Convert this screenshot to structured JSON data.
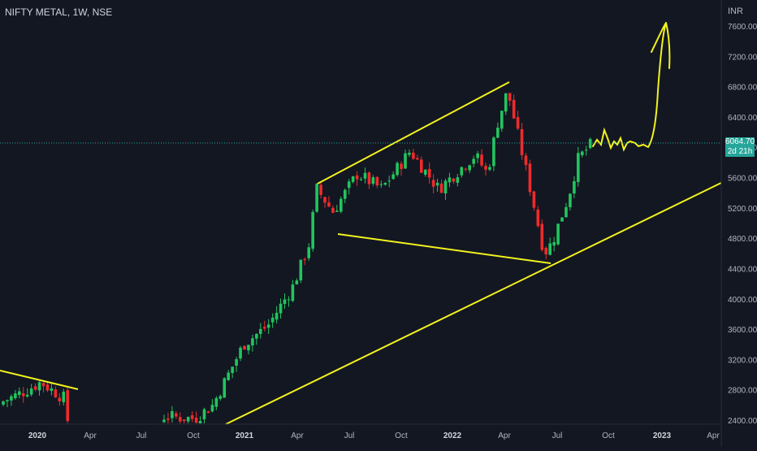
{
  "header": {
    "symbol": "NIFTY METAL",
    "interval": "1W",
    "exchange": "NSE"
  },
  "axis_unit": "INR",
  "last_price": {
    "value": "6064.70",
    "countdown": "2d 21h"
  },
  "colors": {
    "background": "#131722",
    "up": "#22c55e",
    "down": "#ef2b2b",
    "trendline": "#f2f21e",
    "last_price_line": "#26a69a",
    "axis_text": "#b2b5be"
  },
  "chart_data": {
    "type": "candlestick",
    "y_ticks": [
      "7600.00",
      "7200.00",
      "6800.00",
      "6400.00",
      "6000.00",
      "5600.00",
      "5200.00",
      "4800.00",
      "4400.00",
      "4000.00",
      "3600.00",
      "3200.00",
      "2800.00",
      "2400.00"
    ],
    "x_ticks": [
      "2020",
      "Apr",
      "Jul",
      "Oct",
      "2021",
      "Apr",
      "Jul",
      "Oct",
      "2022",
      "Apr",
      "Jul",
      "Oct",
      "2023",
      "Apr"
    ],
    "ylim": [
      2400,
      7760
    ],
    "grid": false,
    "drawings": [
      {
        "name": "channel-top-line",
        "from": [
          "2021-05",
          5450
        ],
        "to": [
          "2022-04",
          6880
        ]
      },
      {
        "name": "channel-bottom-line",
        "from": [
          "2021-06",
          4850
        ],
        "to": [
          "2022-06",
          4480
        ]
      },
      {
        "name": "long-term-support-line",
        "from": [
          "2020-11",
          2400
        ],
        "to": [
          "2023-05",
          5580
        ]
      },
      {
        "name": "old-trend-line",
        "from": [
          "2019-11",
          3000
        ],
        "to": [
          "2020-03",
          2850
        ]
      },
      {
        "name": "projection-scribble",
        "from": [
          "2022-08",
          6064
        ],
        "to": [
          "2022-12",
          7600
        ]
      }
    ]
  }
}
